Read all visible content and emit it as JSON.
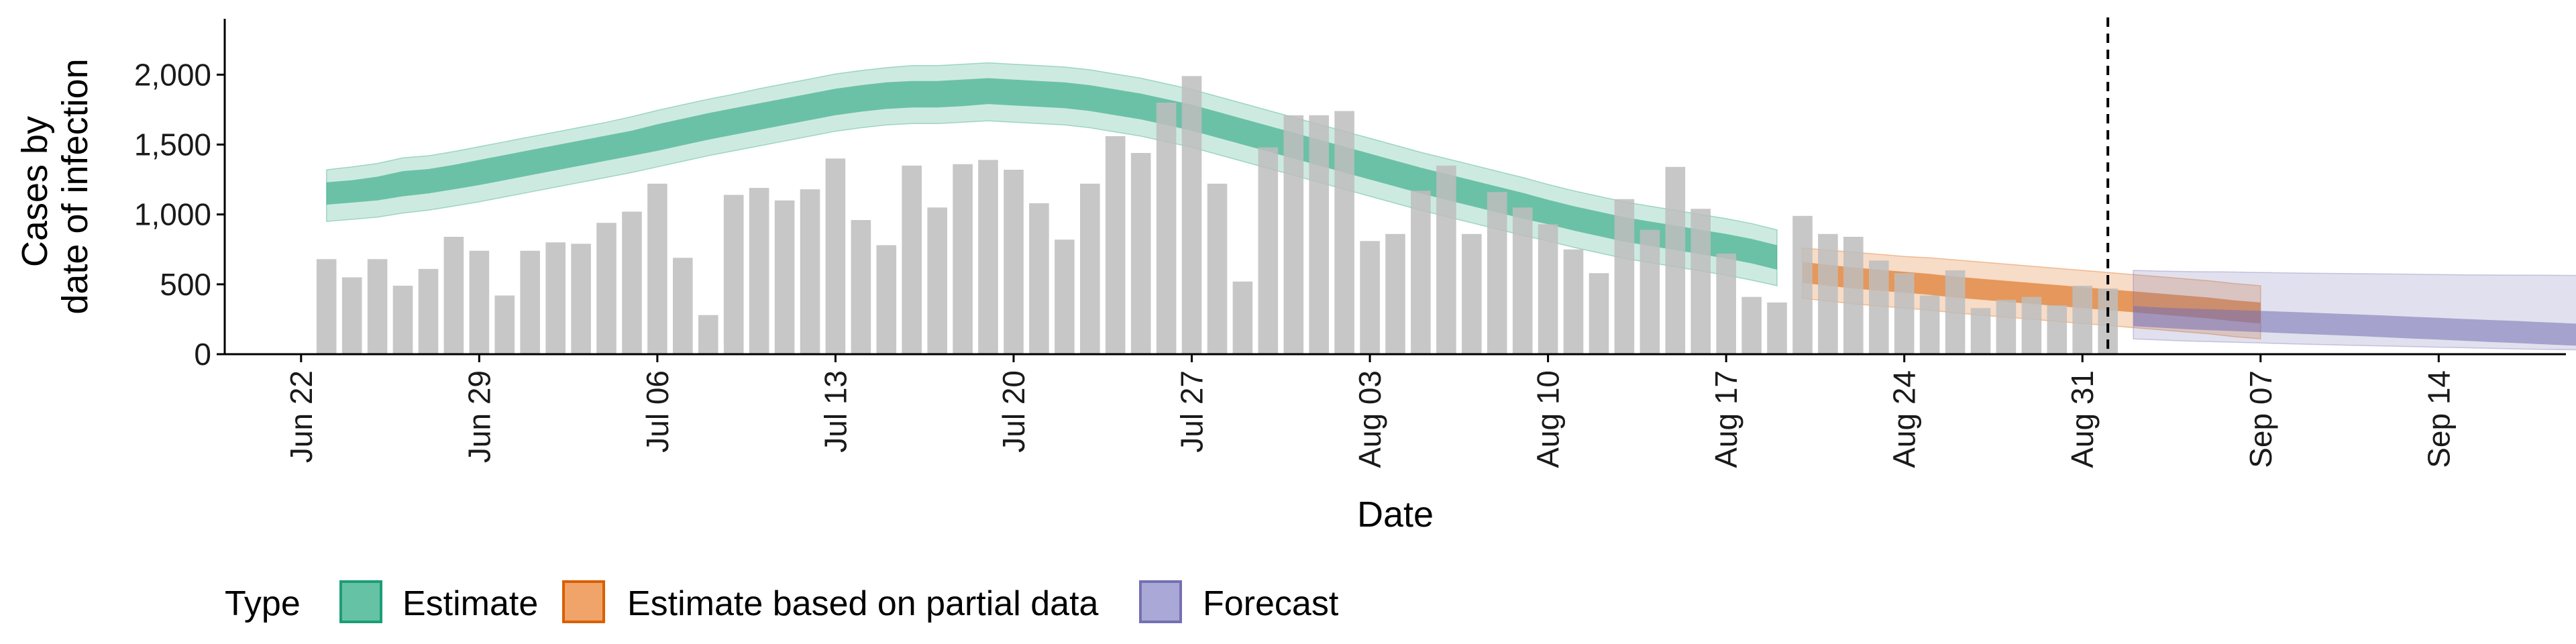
{
  "chart_data": {
    "type": "bar",
    "xlabel": "Date",
    "ylabel_lines": [
      "Cases by",
      "date of infection"
    ],
    "ylim": [
      0,
      2400
    ],
    "yticks": [
      0,
      500,
      1000,
      1500,
      2000
    ],
    "ytick_labels": [
      "0",
      "500",
      "1,000",
      "1,500",
      "2,000"
    ],
    "xticks": [
      {
        "date": "2020-06-22",
        "label": "Jun 22"
      },
      {
        "date": "2020-06-29",
        "label": "Jun 29"
      },
      {
        "date": "2020-07-06",
        "label": "Jul 06"
      },
      {
        "date": "2020-07-13",
        "label": "Jul 13"
      },
      {
        "date": "2020-07-20",
        "label": "Jul 20"
      },
      {
        "date": "2020-07-27",
        "label": "Jul 27"
      },
      {
        "date": "2020-08-03",
        "label": "Aug 03"
      },
      {
        "date": "2020-08-10",
        "label": "Aug 10"
      },
      {
        "date": "2020-08-17",
        "label": "Aug 17"
      },
      {
        "date": "2020-08-24",
        "label": "Aug 24"
      },
      {
        "date": "2020-08-31",
        "label": "Aug 31"
      },
      {
        "date": "2020-09-07",
        "label": "Sep 07"
      },
      {
        "date": "2020-09-14",
        "label": "Sep 14"
      }
    ],
    "xlim": [
      "2020-06-19",
      "2020-09-19"
    ],
    "grid": false,
    "vline_date": "2020-09-01",
    "bar_color": "#bdbdbd",
    "observed_cases": {
      "start_date": "2020-06-23",
      "values": [
        680,
        550,
        680,
        490,
        610,
        840,
        740,
        420,
        740,
        800,
        790,
        940,
        1020,
        1220,
        690,
        280,
        1140,
        1190,
        1100,
        1180,
        1400,
        960,
        780,
        1350,
        1050,
        1360,
        1390,
        1320,
        1080,
        820,
        1220,
        1560,
        1440,
        1800,
        1990,
        1220,
        520,
        1480,
        1710,
        1710,
        1740,
        810,
        860,
        1170,
        1350,
        860,
        1160,
        1050,
        930,
        750,
        580,
        1110,
        890,
        1340,
        1040,
        720,
        410,
        370,
        990,
        860,
        840,
        670,
        580,
        420,
        600,
        330,
        390,
        410,
        350,
        490,
        470
      ]
    },
    "legend": {
      "title": "Type",
      "position": "bottom",
      "items": [
        {
          "label": "Estimate",
          "fill": "#66c2a5",
          "border": "#1b9e77"
        },
        {
          "label": "Estimate based on partial data",
          "fill": "#f0a469",
          "border": "#d95f02"
        },
        {
          "label": "Forecast",
          "fill": "#aaa8d6",
          "border": "#7570b3"
        }
      ]
    },
    "series": [
      {
        "name": "Estimate",
        "color": "#1b9e77",
        "start_date": "2020-06-23",
        "median": [
          1150,
          1165,
          1185,
          1220,
          1235,
          1265,
          1300,
          1335,
          1370,
          1405,
          1440,
          1475,
          1510,
          1550,
          1590,
          1630,
          1665,
          1700,
          1735,
          1770,
          1805,
          1830,
          1850,
          1860,
          1860,
          1870,
          1880,
          1870,
          1860,
          1850,
          1830,
          1800,
          1770,
          1730,
          1690,
          1640,
          1590,
          1540,
          1490,
          1440,
          1390,
          1340,
          1290,
          1240,
          1195,
          1150,
          1105,
          1060,
          1015,
          970,
          930,
          890,
          860,
          830,
          800,
          770,
          735,
          690
        ],
        "inner": [
          [
            1070,
            1230
          ],
          [
            1085,
            1245
          ],
          [
            1100,
            1270
          ],
          [
            1130,
            1310
          ],
          [
            1150,
            1325
          ],
          [
            1180,
            1355
          ],
          [
            1210,
            1390
          ],
          [
            1245,
            1425
          ],
          [
            1280,
            1460
          ],
          [
            1315,
            1495
          ],
          [
            1350,
            1530
          ],
          [
            1385,
            1565
          ],
          [
            1420,
            1600
          ],
          [
            1455,
            1645
          ],
          [
            1495,
            1685
          ],
          [
            1535,
            1725
          ],
          [
            1570,
            1760
          ],
          [
            1605,
            1795
          ],
          [
            1640,
            1830
          ],
          [
            1675,
            1865
          ],
          [
            1710,
            1900
          ],
          [
            1735,
            1925
          ],
          [
            1755,
            1945
          ],
          [
            1765,
            1955
          ],
          [
            1765,
            1955
          ],
          [
            1775,
            1965
          ],
          [
            1790,
            1975
          ],
          [
            1780,
            1965
          ],
          [
            1770,
            1955
          ],
          [
            1760,
            1945
          ],
          [
            1740,
            1925
          ],
          [
            1710,
            1895
          ],
          [
            1680,
            1865
          ],
          [
            1640,
            1825
          ],
          [
            1600,
            1785
          ],
          [
            1550,
            1735
          ],
          [
            1500,
            1685
          ],
          [
            1450,
            1635
          ],
          [
            1400,
            1585
          ],
          [
            1350,
            1535
          ],
          [
            1300,
            1485
          ],
          [
            1250,
            1435
          ],
          [
            1200,
            1385
          ],
          [
            1150,
            1335
          ],
          [
            1105,
            1290
          ],
          [
            1060,
            1245
          ],
          [
            1015,
            1200
          ],
          [
            970,
            1155
          ],
          [
            930,
            1105
          ],
          [
            885,
            1060
          ],
          [
            845,
            1020
          ],
          [
            805,
            980
          ],
          [
            775,
            950
          ],
          [
            745,
            920
          ],
          [
            715,
            890
          ],
          [
            685,
            860
          ],
          [
            650,
            825
          ],
          [
            605,
            780
          ]
        ],
        "outer": [
          [
            950,
            1320
          ],
          [
            965,
            1340
          ],
          [
            980,
            1365
          ],
          [
            1010,
            1405
          ],
          [
            1030,
            1420
          ],
          [
            1060,
            1450
          ],
          [
            1090,
            1485
          ],
          [
            1125,
            1520
          ],
          [
            1160,
            1555
          ],
          [
            1195,
            1590
          ],
          [
            1230,
            1625
          ],
          [
            1265,
            1660
          ],
          [
            1300,
            1700
          ],
          [
            1340,
            1745
          ],
          [
            1380,
            1785
          ],
          [
            1420,
            1825
          ],
          [
            1455,
            1860
          ],
          [
            1490,
            1900
          ],
          [
            1525,
            1935
          ],
          [
            1560,
            1970
          ],
          [
            1595,
            2005
          ],
          [
            1620,
            2030
          ],
          [
            1640,
            2050
          ],
          [
            1650,
            2065
          ],
          [
            1650,
            2065
          ],
          [
            1660,
            2075
          ],
          [
            1670,
            2085
          ],
          [
            1660,
            2075
          ],
          [
            1650,
            2065
          ],
          [
            1640,
            2055
          ],
          [
            1620,
            2035
          ],
          [
            1590,
            2005
          ],
          [
            1560,
            1975
          ],
          [
            1520,
            1935
          ],
          [
            1480,
            1895
          ],
          [
            1430,
            1845
          ],
          [
            1380,
            1795
          ],
          [
            1330,
            1745
          ],
          [
            1280,
            1695
          ],
          [
            1230,
            1645
          ],
          [
            1180,
            1595
          ],
          [
            1130,
            1545
          ],
          [
            1080,
            1495
          ],
          [
            1030,
            1445
          ],
          [
            985,
            1400
          ],
          [
            940,
            1355
          ],
          [
            895,
            1310
          ],
          [
            850,
            1265
          ],
          [
            810,
            1215
          ],
          [
            765,
            1170
          ],
          [
            725,
            1130
          ],
          [
            685,
            1090
          ],
          [
            655,
            1060
          ],
          [
            625,
            1030
          ],
          [
            595,
            1000
          ],
          [
            565,
            970
          ],
          [
            530,
            935
          ],
          [
            490,
            890
          ]
        ]
      },
      {
        "name": "Estimate based on partial data",
        "color": "#d95f02",
        "start_date": "2020-08-20",
        "median": [
          580,
          560,
          540,
          525,
          510,
          495,
          475,
          460,
          445,
          430,
          415,
          400,
          385,
          370,
          355,
          340,
          325,
          305,
          290
        ],
        "inner": [
          [
            510,
            660
          ],
          [
            490,
            640
          ],
          [
            470,
            620
          ],
          [
            455,
            605
          ],
          [
            440,
            590
          ],
          [
            425,
            575
          ],
          [
            405,
            555
          ],
          [
            390,
            540
          ],
          [
            375,
            525
          ],
          [
            360,
            510
          ],
          [
            345,
            495
          ],
          [
            330,
            480
          ],
          [
            315,
            465
          ],
          [
            300,
            450
          ],
          [
            285,
            435
          ],
          [
            270,
            420
          ],
          [
            255,
            405
          ],
          [
            235,
            385
          ],
          [
            220,
            370
          ]
        ],
        "outer": [
          [
            400,
            760
          ],
          [
            380,
            745
          ],
          [
            360,
            730
          ],
          [
            345,
            715
          ],
          [
            330,
            700
          ],
          [
            315,
            690
          ],
          [
            295,
            675
          ],
          [
            280,
            660
          ],
          [
            265,
            645
          ],
          [
            250,
            630
          ],
          [
            235,
            615
          ],
          [
            220,
            600
          ],
          [
            205,
            585
          ],
          [
            190,
            570
          ],
          [
            175,
            555
          ],
          [
            160,
            540
          ],
          [
            145,
            525
          ],
          [
            125,
            505
          ],
          [
            110,
            490
          ]
        ]
      },
      {
        "name": "Forecast",
        "color": "#7570b3",
        "start_date": "2020-09-02",
        "median": [
          270,
          260,
          255,
          250,
          245,
          240,
          235,
          228,
          222,
          215,
          208,
          200,
          193,
          185,
          178,
          170,
          162,
          155,
          148,
          140
        ],
        "inner": [
          [
            200,
            345
          ],
          [
            190,
            335
          ],
          [
            180,
            328
          ],
          [
            172,
            322
          ],
          [
            165,
            316
          ],
          [
            158,
            310
          ],
          [
            150,
            304
          ],
          [
            143,
            297
          ],
          [
            136,
            290
          ],
          [
            128,
            283
          ],
          [
            120,
            276
          ],
          [
            112,
            268
          ],
          [
            104,
            260
          ],
          [
            96,
            252
          ],
          [
            88,
            245
          ],
          [
            80,
            238
          ],
          [
            72,
            230
          ],
          [
            64,
            222
          ],
          [
            57,
            215
          ],
          [
            50,
            208
          ]
        ],
        "outer": [
          [
            110,
            600
          ],
          [
            102,
            595
          ],
          [
            95,
            592
          ],
          [
            90,
            590
          ],
          [
            85,
            588
          ],
          [
            80,
            585
          ],
          [
            75,
            582
          ],
          [
            70,
            580
          ],
          [
            66,
            578
          ],
          [
            62,
            576
          ],
          [
            58,
            574
          ],
          [
            54,
            572
          ],
          [
            50,
            570
          ],
          [
            46,
            568
          ],
          [
            42,
            567
          ],
          [
            38,
            566
          ],
          [
            35,
            565
          ],
          [
            32,
            564
          ],
          [
            30,
            563
          ],
          [
            28,
            562
          ]
        ]
      }
    ]
  }
}
